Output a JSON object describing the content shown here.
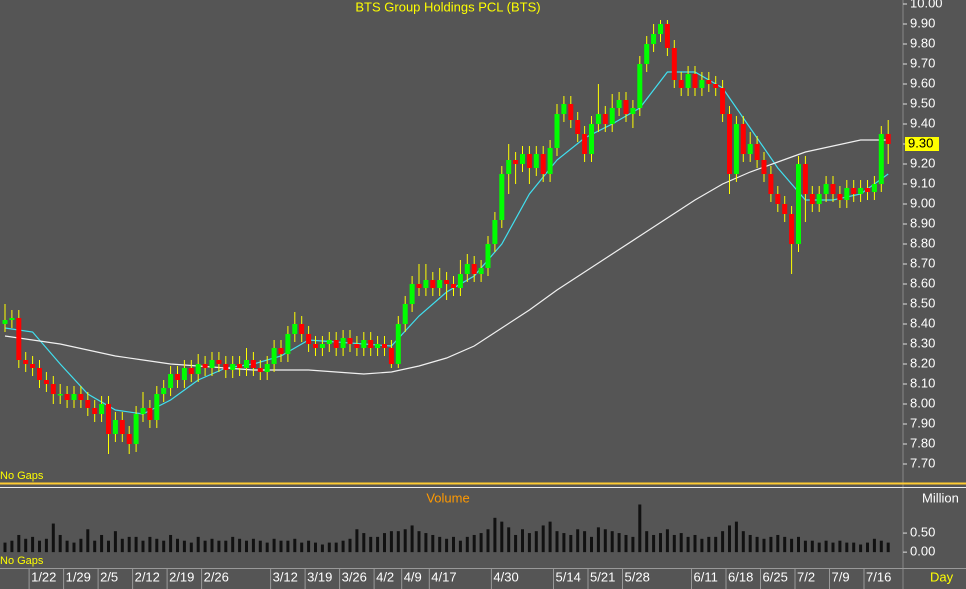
{
  "chart_data": [
    {
      "type": "candlestick",
      "title": "BTS Group Holdings PCL (BTS)",
      "note": "No Gaps",
      "categories": [
        null,
        null,
        null,
        null,
        "1/22",
        null,
        null,
        null,
        null,
        "1/29",
        null,
        null,
        null,
        null,
        "2/5",
        null,
        null,
        null,
        null,
        "2/12",
        null,
        null,
        null,
        null,
        "2/19",
        null,
        null,
        null,
        null,
        "2/26",
        null,
        null,
        null,
        null,
        null,
        null,
        null,
        null,
        null,
        "3/12",
        null,
        null,
        null,
        null,
        "3/19",
        null,
        null,
        null,
        null,
        "3/26",
        null,
        null,
        null,
        null,
        "4/2",
        null,
        null,
        null,
        "4/9",
        null,
        null,
        null,
        "4/17",
        null,
        null,
        null,
        null,
        null,
        null,
        null,
        null,
        "4/30",
        null,
        null,
        null,
        null,
        null,
        null,
        null,
        null,
        "5/14",
        null,
        null,
        null,
        null,
        "5/21",
        null,
        null,
        null,
        null,
        "5/28",
        null,
        null,
        null,
        null,
        null,
        null,
        null,
        null,
        null,
        "6/11",
        null,
        null,
        null,
        null,
        "6/18",
        null,
        null,
        null,
        null,
        "6/25",
        null,
        null,
        null,
        null,
        "7/2",
        null,
        null,
        null,
        null,
        "7/9",
        null,
        null,
        null,
        null,
        "7/16",
        null,
        null,
        null
      ],
      "x_unit": "Day",
      "open": [
        8.4,
        8.42,
        8.43,
        8.22,
        8.2,
        8.18,
        8.12,
        8.1,
        8.05,
        8.05,
        8.02,
        8.05,
        8.02,
        7.98,
        7.95,
        8.0,
        7.85,
        7.92,
        7.85,
        7.8,
        7.95,
        7.98,
        7.92,
        8.05,
        8.08,
        8.15,
        8.12,
        8.18,
        8.15,
        8.2,
        8.18,
        8.22,
        8.2,
        8.17,
        8.2,
        8.18,
        8.22,
        8.18,
        8.16,
        8.2,
        8.28,
        8.25,
        8.35,
        8.4,
        8.35,
        8.3,
        8.28,
        8.3,
        8.32,
        8.28,
        8.33,
        8.3,
        8.28,
        8.32,
        8.28,
        8.3,
        8.28,
        8.2,
        8.4,
        8.5,
        8.6,
        8.58,
        8.62,
        8.58,
        8.62,
        8.6,
        8.58,
        8.65,
        8.7,
        8.65,
        8.68,
        8.8,
        8.92,
        9.15,
        9.22,
        9.2,
        9.25,
        9.18,
        9.25,
        9.15,
        9.28,
        9.45,
        9.5,
        9.42,
        9.35,
        9.25,
        9.4,
        9.45,
        9.4,
        9.48,
        9.52,
        9.45,
        9.48,
        9.7,
        9.8,
        9.85,
        9.9,
        9.78,
        9.62,
        9.58,
        9.65,
        9.58,
        9.62,
        9.6,
        9.58,
        9.45,
        9.15,
        9.4,
        9.25,
        9.3,
        9.22,
        9.15,
        9.05,
        9.0,
        8.95,
        8.8,
        9.2,
        9.05,
        9.0,
        9.05,
        9.1,
        9.05,
        9.02,
        9.08,
        9.05,
        9.08,
        9.06,
        9.1,
        9.35
      ],
      "high": [
        8.5,
        8.47,
        8.47,
        8.26,
        8.24,
        8.22,
        8.16,
        8.14,
        8.1,
        8.09,
        8.09,
        8.09,
        8.06,
        8.02,
        8.04,
        8.04,
        7.96,
        7.96,
        7.89,
        7.99,
        8.06,
        8.02,
        8.09,
        8.12,
        8.19,
        8.19,
        8.22,
        8.22,
        8.25,
        8.24,
        8.26,
        8.26,
        8.24,
        8.24,
        8.24,
        8.28,
        8.26,
        8.22,
        8.24,
        8.32,
        8.32,
        8.39,
        8.46,
        8.44,
        8.39,
        8.34,
        8.34,
        8.36,
        8.36,
        8.37,
        8.37,
        8.34,
        8.36,
        8.36,
        8.34,
        8.34,
        8.32,
        8.44,
        8.54,
        8.64,
        8.7,
        8.7,
        8.66,
        8.68,
        8.66,
        8.64,
        8.72,
        8.75,
        8.74,
        8.72,
        8.84,
        8.96,
        9.19,
        9.3,
        9.26,
        9.29,
        9.29,
        9.29,
        9.29,
        9.32,
        9.5,
        9.54,
        9.54,
        9.46,
        9.39,
        9.44,
        9.6,
        9.49,
        9.55,
        9.56,
        9.56,
        9.52,
        9.74,
        9.84,
        9.9,
        9.92,
        9.92,
        9.82,
        9.66,
        9.69,
        9.69,
        9.66,
        9.66,
        9.64,
        9.62,
        9.49,
        9.44,
        9.44,
        9.36,
        9.34,
        9.26,
        9.19,
        9.09,
        9.04,
        8.99,
        9.24,
        9.24,
        9.09,
        9.09,
        9.14,
        9.14,
        9.09,
        9.12,
        9.12,
        9.12,
        9.12,
        9.14,
        9.39,
        9.42
      ],
      "low": [
        8.36,
        8.38,
        8.18,
        8.16,
        8.14,
        8.08,
        8.06,
        8.0,
        8.0,
        7.98,
        7.98,
        7.98,
        7.94,
        7.91,
        7.91,
        7.75,
        7.81,
        7.81,
        7.75,
        7.76,
        7.91,
        7.88,
        7.88,
        8.01,
        8.04,
        8.08,
        8.08,
        8.11,
        8.11,
        8.14,
        8.14,
        8.16,
        8.13,
        8.13,
        8.14,
        8.14,
        8.14,
        8.12,
        8.12,
        8.16,
        8.21,
        8.21,
        8.31,
        8.31,
        8.26,
        8.24,
        8.24,
        8.26,
        8.24,
        8.24,
        8.26,
        8.24,
        8.24,
        8.24,
        8.24,
        8.24,
        8.18,
        8.18,
        8.36,
        8.46,
        8.54,
        8.54,
        8.54,
        8.54,
        8.52,
        8.54,
        8.54,
        8.61,
        8.61,
        8.61,
        8.64,
        8.76,
        8.88,
        9.05,
        9.1,
        9.16,
        9.1,
        9.14,
        9.11,
        9.11,
        9.24,
        9.41,
        9.38,
        9.31,
        9.21,
        9.21,
        9.36,
        9.36,
        9.36,
        9.44,
        9.41,
        9.38,
        9.44,
        9.66,
        9.76,
        9.81,
        9.74,
        9.58,
        9.54,
        9.54,
        9.54,
        9.54,
        9.56,
        9.54,
        9.41,
        9.05,
        9.11,
        9.21,
        9.21,
        9.18,
        9.11,
        9.01,
        8.96,
        8.91,
        8.65,
        8.76,
        8.91,
        8.96,
        8.96,
        9.01,
        9.01,
        8.98,
        8.98,
        9.01,
        9.01,
        9.02,
        9.02,
        9.06,
        9.2
      ],
      "close": [
        8.42,
        8.43,
        8.22,
        8.2,
        8.18,
        8.12,
        8.1,
        8.05,
        8.05,
        8.02,
        8.05,
        8.02,
        7.98,
        7.95,
        8.0,
        7.85,
        7.92,
        7.85,
        7.8,
        7.95,
        7.98,
        7.92,
        8.05,
        8.08,
        8.15,
        8.12,
        8.18,
        8.15,
        8.2,
        8.18,
        8.22,
        8.2,
        8.17,
        8.2,
        8.18,
        8.22,
        8.18,
        8.16,
        8.2,
        8.28,
        8.25,
        8.35,
        8.4,
        8.35,
        8.3,
        8.28,
        8.3,
        8.32,
        8.28,
        8.33,
        8.3,
        8.28,
        8.32,
        8.28,
        8.3,
        8.28,
        8.2,
        8.4,
        8.5,
        8.6,
        8.58,
        8.62,
        8.58,
        8.62,
        8.6,
        8.58,
        8.65,
        8.7,
        8.65,
        8.68,
        8.8,
        8.92,
        9.15,
        9.22,
        9.2,
        9.25,
        9.18,
        9.25,
        9.15,
        9.28,
        9.45,
        9.5,
        9.42,
        9.35,
        9.25,
        9.4,
        9.45,
        9.4,
        9.48,
        9.52,
        9.45,
        9.48,
        9.7,
        9.8,
        9.85,
        9.9,
        9.78,
        9.62,
        9.58,
        9.65,
        9.58,
        9.62,
        9.6,
        9.58,
        9.45,
        9.15,
        9.4,
        9.25,
        9.3,
        9.22,
        9.15,
        9.05,
        9.0,
        8.95,
        8.8,
        9.2,
        9.05,
        9.0,
        9.05,
        9.1,
        9.05,
        9.02,
        9.08,
        9.05,
        9.08,
        9.06,
        9.1,
        9.35,
        9.3
      ],
      "up_color": "#00ff00",
      "down_color": "#ff0000",
      "wick_color": "#ffff00",
      "series": [
        {
          "color": "#40e0f0",
          "x": [
            0,
            4,
            8,
            12,
            16,
            20,
            24,
            28,
            32,
            36,
            40,
            44,
            48,
            52,
            56,
            60,
            64,
            68,
            72,
            76,
            80,
            84,
            88,
            92,
            96,
            100,
            104,
            108,
            112,
            116,
            120,
            124,
            128
          ],
          "values": [
            8.38,
            8.36,
            8.2,
            8.05,
            7.97,
            7.95,
            8.02,
            8.12,
            8.18,
            8.2,
            8.24,
            8.32,
            8.31,
            8.3,
            8.29,
            8.44,
            8.56,
            8.64,
            8.8,
            9.05,
            9.22,
            9.33,
            9.4,
            9.48,
            9.66,
            9.66,
            9.58,
            9.38,
            9.18,
            9.02,
            9.02,
            9.05,
            9.15
          ]
        },
        {
          "color": "#f0f0f0",
          "x": [
            0,
            4,
            8,
            12,
            16,
            20,
            24,
            28,
            32,
            36,
            40,
            44,
            48,
            52,
            56,
            60,
            64,
            68,
            72,
            76,
            80,
            84,
            88,
            92,
            96,
            100,
            104,
            108,
            112,
            116,
            120,
            124,
            128
          ],
          "values": [
            8.34,
            8.32,
            8.3,
            8.27,
            8.24,
            8.22,
            8.2,
            8.19,
            8.18,
            8.17,
            8.17,
            8.17,
            8.16,
            8.15,
            8.16,
            8.19,
            8.23,
            8.29,
            8.38,
            8.47,
            8.57,
            8.66,
            8.75,
            8.84,
            8.93,
            9.02,
            9.1,
            9.16,
            9.21,
            9.26,
            9.29,
            9.32,
            9.32
          ]
        }
      ],
      "last_price": {
        "value": 9.3,
        "label": "9.30"
      },
      "ylim": [
        7.61,
        10.02
      ],
      "yticks": [
        {
          "value": 7.7,
          "label": "7.70"
        },
        {
          "value": 7.8,
          "label": "7.80"
        },
        {
          "value": 7.9,
          "label": "7.90"
        },
        {
          "value": 8.0,
          "label": "8.00"
        },
        {
          "value": 8.1,
          "label": "8.10"
        },
        {
          "value": 8.2,
          "label": "8.20"
        },
        {
          "value": 8.3,
          "label": "8.30"
        },
        {
          "value": 8.4,
          "label": "8.40"
        },
        {
          "value": 8.5,
          "label": "8.50"
        },
        {
          "value": 8.6,
          "label": "8.60"
        },
        {
          "value": 8.7,
          "label": "8.70"
        },
        {
          "value": 8.8,
          "label": "8.80"
        },
        {
          "value": 8.9,
          "label": "8.90"
        },
        {
          "value": 9.0,
          "label": "9.00"
        },
        {
          "value": 9.1,
          "label": "9.10"
        },
        {
          "value": 9.2,
          "label": "9.20"
        },
        {
          "value": 9.3,
          "label": "9.30"
        },
        {
          "value": 9.4,
          "label": "9.40"
        },
        {
          "value": 9.5,
          "label": "9.50"
        },
        {
          "value": 9.6,
          "label": "9.60"
        },
        {
          "value": 9.7,
          "label": "9.70"
        },
        {
          "value": 9.8,
          "label": "9.80"
        },
        {
          "value": 9.9,
          "label": "9.90"
        },
        {
          "value": 10.0,
          "label": "10.00"
        }
      ]
    },
    {
      "type": "bar",
      "title": "Volume",
      "unit": "Million",
      "note": "No Gaps",
      "color": "#111111",
      "values": [
        0.25,
        0.3,
        0.45,
        0.35,
        0.4,
        0.3,
        0.35,
        0.75,
        0.45,
        0.3,
        0.25,
        0.35,
        0.6,
        0.3,
        0.45,
        0.3,
        0.55,
        0.35,
        0.4,
        0.4,
        0.3,
        0.4,
        0.35,
        0.3,
        0.45,
        0.35,
        0.3,
        0.25,
        0.4,
        0.3,
        0.35,
        0.3,
        0.3,
        0.4,
        0.35,
        0.3,
        0.35,
        0.3,
        0.25,
        0.35,
        0.3,
        0.3,
        0.35,
        0.25,
        0.3,
        0.25,
        0.2,
        0.25,
        0.25,
        0.3,
        0.35,
        0.6,
        0.5,
        0.4,
        0.4,
        0.5,
        0.55,
        0.55,
        0.6,
        0.7,
        0.55,
        0.5,
        0.45,
        0.4,
        0.35,
        0.4,
        0.3,
        0.4,
        0.45,
        0.5,
        0.6,
        0.9,
        0.8,
        0.65,
        0.45,
        0.6,
        0.5,
        0.55,
        0.7,
        0.8,
        0.55,
        0.5,
        0.45,
        0.6,
        0.55,
        0.4,
        0.65,
        0.6,
        0.55,
        0.5,
        0.45,
        0.4,
        1.25,
        0.55,
        0.45,
        0.5,
        0.6,
        0.45,
        0.5,
        0.4,
        0.45,
        0.35,
        0.4,
        0.4,
        0.55,
        0.7,
        0.8,
        0.55,
        0.45,
        0.4,
        0.35,
        0.4,
        0.45,
        0.4,
        0.35,
        0.4,
        0.3,
        0.3,
        0.25,
        0.3,
        0.25,
        0.3,
        0.25,
        0.25,
        0.2,
        0.25,
        0.35,
        0.3,
        0.25
      ],
      "ylim": [
        -0.39,
        1.63
      ],
      "yticks": [
        {
          "value": 0,
          "label": "0.00"
        },
        {
          "value": 0.5,
          "label": "0.50"
        }
      ]
    }
  ]
}
